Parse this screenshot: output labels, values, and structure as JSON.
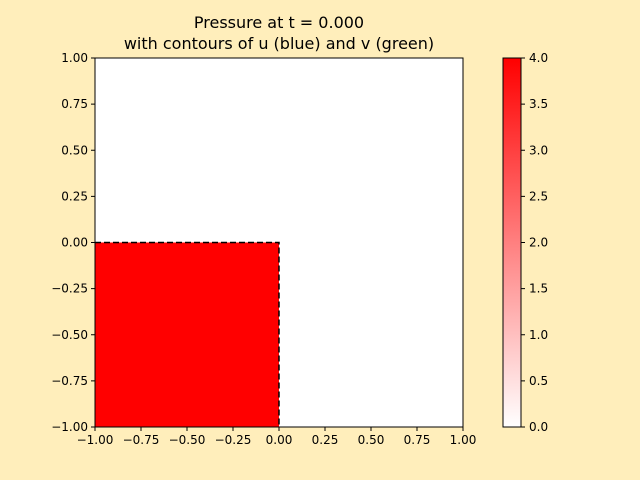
{
  "chart_data": {
    "type": "heatmap",
    "title_line1": "Pressure at t = 0.000",
    "title_line2": "with contours of u (blue) and v (green)",
    "xlabel": "",
    "ylabel": "",
    "xlim": [
      -1.0,
      1.0
    ],
    "ylim": [
      -1.0,
      1.0
    ],
    "x_ticks": [
      -1.0,
      -0.75,
      -0.5,
      -0.25,
      0.0,
      0.25,
      0.5,
      0.75,
      1.0
    ],
    "x_tick_labels": [
      "−1.00",
      "−0.75",
      "−0.50",
      "−0.25",
      "0.00",
      "0.25",
      "0.50",
      "0.75",
      "1.00"
    ],
    "y_ticks": [
      -1.0,
      -0.75,
      -0.5,
      -0.25,
      0.0,
      0.25,
      0.5,
      0.75,
      1.0
    ],
    "y_tick_labels": [
      "−1.00",
      "−0.75",
      "−0.50",
      "−0.25",
      "0.00",
      "0.25",
      "0.50",
      "0.75",
      "1.00"
    ],
    "grid": false,
    "pressure_field": [
      {
        "x0": -1.0,
        "x1": 0.0,
        "y0": -1.0,
        "y1": 0.0,
        "value": 4.0
      },
      {
        "x0": 0.0,
        "x1": 1.0,
        "y0": -1.0,
        "y1": 0.0,
        "value": 0.0
      },
      {
        "x0": -1.0,
        "x1": 0.0,
        "y0": 0.0,
        "y1": 1.0,
        "value": 0.0
      },
      {
        "x0": 0.0,
        "x1": 1.0,
        "y0": 0.0,
        "y1": 1.0,
        "value": 0.0
      }
    ],
    "contour": {
      "style": "dashed",
      "color": "#000000",
      "points": [
        [
          -1.0,
          0.0
        ],
        [
          0.0,
          0.0
        ],
        [
          0.0,
          -1.0
        ]
      ]
    },
    "colorbar": {
      "range": [
        0.0,
        4.0
      ],
      "ticks": [
        0.0,
        0.5,
        1.0,
        1.5,
        2.0,
        2.5,
        3.0,
        3.5,
        4.0
      ],
      "tick_labels": [
        "0.0",
        "0.5",
        "1.0",
        "1.5",
        "2.0",
        "2.5",
        "3.0",
        "3.5",
        "4.0"
      ],
      "color_low": "#ffffff",
      "color_high": "#ff0000"
    }
  },
  "colors": {
    "figure_background": "#ffeebb",
    "axes_background": "#ffffff"
  }
}
